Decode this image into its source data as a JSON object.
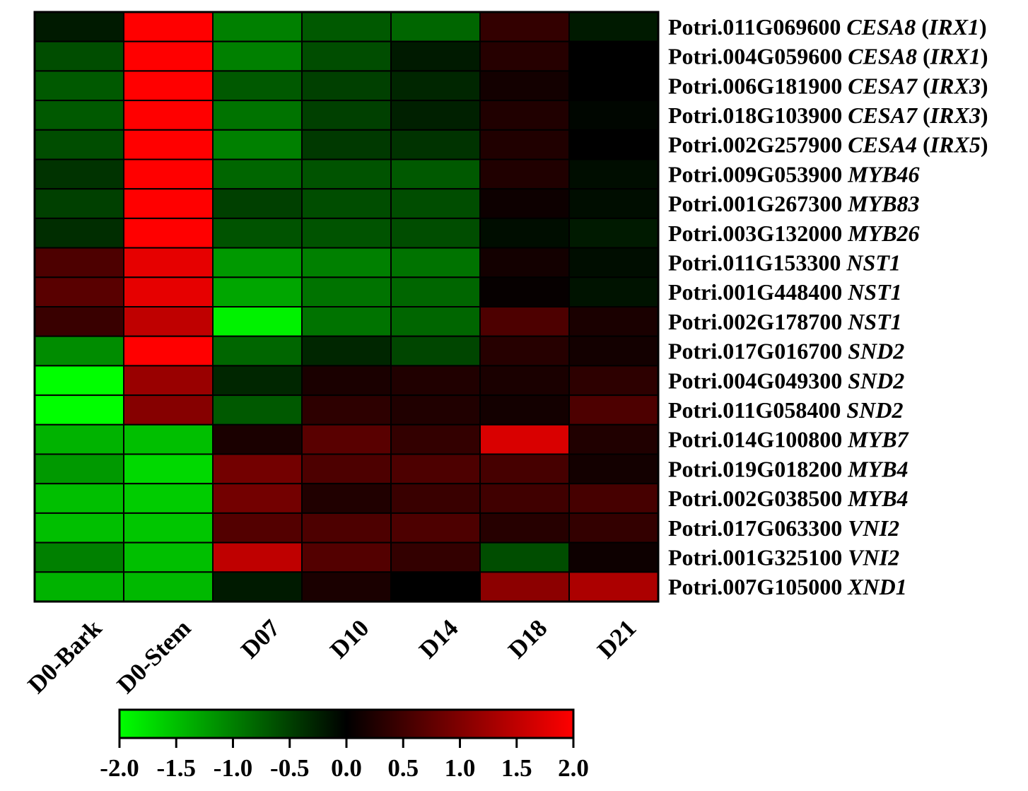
{
  "chart_data": {
    "type": "heatmap",
    "title": "",
    "xlabel": "",
    "ylabel": "",
    "columns": [
      "D0-Bark",
      "D0-Stem",
      "D07",
      "D10",
      "D14",
      "D18",
      "D21"
    ],
    "rows": [
      {
        "id": "Potri.011G069600",
        "gene": "CESA8",
        "alias": "IRX1",
        "values": [
          -0.2,
          2.0,
          -1.0,
          -0.7,
          -0.8,
          0.4,
          -0.2
        ]
      },
      {
        "id": "Potri.004G059600",
        "gene": "CESA8",
        "alias": "IRX1",
        "values": [
          -0.6,
          2.0,
          -1.0,
          -0.6,
          -0.2,
          0.3,
          0.0
        ]
      },
      {
        "id": "Potri.006G181900",
        "gene": "CESA7",
        "alias": "IRX3",
        "values": [
          -0.7,
          2.0,
          -0.7,
          -0.5,
          -0.3,
          0.15,
          0.0
        ]
      },
      {
        "id": "Potri.018G103900",
        "gene": "CESA7",
        "alias": "IRX3",
        "values": [
          -0.7,
          2.0,
          -0.9,
          -0.5,
          -0.25,
          0.25,
          -0.05
        ]
      },
      {
        "id": "Potri.002G257900",
        "gene": "CESA4",
        "alias": "IRX5",
        "values": [
          -0.6,
          2.0,
          -1.0,
          -0.45,
          -0.4,
          0.25,
          0.0
        ]
      },
      {
        "id": "Potri.009G053900",
        "gene": "MYB46",
        "alias": "",
        "values": [
          -0.4,
          2.0,
          -0.8,
          -0.65,
          -0.7,
          0.25,
          -0.1
        ]
      },
      {
        "id": "Potri.001G267300",
        "gene": "MYB83",
        "alias": "",
        "values": [
          -0.5,
          2.0,
          -0.5,
          -0.6,
          -0.6,
          0.1,
          -0.1
        ]
      },
      {
        "id": "Potri.003G132000",
        "gene": "MYB26",
        "alias": "",
        "values": [
          -0.35,
          2.0,
          -0.65,
          -0.65,
          -0.6,
          -0.1,
          -0.2
        ]
      },
      {
        "id": "Potri.011G153300",
        "gene": "NST1",
        "alias": "",
        "values": [
          0.6,
          1.8,
          -1.2,
          -1.0,
          -0.9,
          0.15,
          -0.1
        ]
      },
      {
        "id": "Potri.001G448400",
        "gene": "NST1",
        "alias": "",
        "values": [
          0.7,
          1.8,
          -1.3,
          -0.9,
          -0.8,
          0.05,
          -0.15
        ]
      },
      {
        "id": "Potri.002G178700",
        "gene": "NST1",
        "alias": "",
        "values": [
          0.45,
          1.5,
          -1.9,
          -0.9,
          -0.8,
          0.6,
          0.2
        ]
      },
      {
        "id": "Potri.017G016700",
        "gene": "SND2",
        "alias": "",
        "values": [
          -1.1,
          2.0,
          -0.8,
          -0.3,
          -0.55,
          0.3,
          0.15
        ]
      },
      {
        "id": "Potri.004G049300",
        "gene": "SND2",
        "alias": "",
        "values": [
          -2.0,
          1.2,
          -0.3,
          0.2,
          0.25,
          0.2,
          0.35
        ]
      },
      {
        "id": "Potri.011G058400",
        "gene": "SND2",
        "alias": "",
        "values": [
          -2.0,
          1.05,
          -0.7,
          0.35,
          0.25,
          0.15,
          0.6
        ]
      },
      {
        "id": "Potri.014G100800",
        "gene": "MYB7",
        "alias": "",
        "values": [
          -1.4,
          -1.5,
          0.2,
          0.7,
          0.4,
          1.7,
          0.25
        ]
      },
      {
        "id": "Potri.019G018200",
        "gene": "MYB4",
        "alias": "",
        "values": [
          -1.2,
          -1.7,
          0.9,
          0.6,
          0.6,
          0.55,
          0.15
        ]
      },
      {
        "id": "Potri.002G038500",
        "gene": "MYB4",
        "alias": "",
        "values": [
          -1.5,
          -1.6,
          0.9,
          0.25,
          0.45,
          0.5,
          0.55
        ]
      },
      {
        "id": "Potri.017G063300",
        "gene": "VNI2",
        "alias": "",
        "values": [
          -1.5,
          -1.55,
          0.65,
          0.6,
          0.6,
          0.3,
          0.4
        ]
      },
      {
        "id": "Potri.001G325100",
        "gene": "VNI2",
        "alias": "",
        "values": [
          -1.0,
          -1.5,
          1.5,
          0.65,
          0.4,
          -0.6,
          0.1
        ]
      },
      {
        "id": "Potri.007G105000",
        "gene": "XND1",
        "alias": "",
        "values": [
          -1.4,
          -1.45,
          -0.2,
          0.2,
          0.0,
          1.1,
          1.35
        ]
      }
    ],
    "colorbar": {
      "min": -2.0,
      "max": 2.0,
      "low_color": "#00ff00",
      "mid_color": "#000000",
      "high_color": "#ff0000",
      "tick_labels": [
        "-2.0",
        "-1.5",
        "-1.0",
        "-0.5",
        "0.0",
        "0.5",
        "1.0",
        "1.5",
        "2.0"
      ]
    },
    "grid": true,
    "legend": "bottom"
  }
}
